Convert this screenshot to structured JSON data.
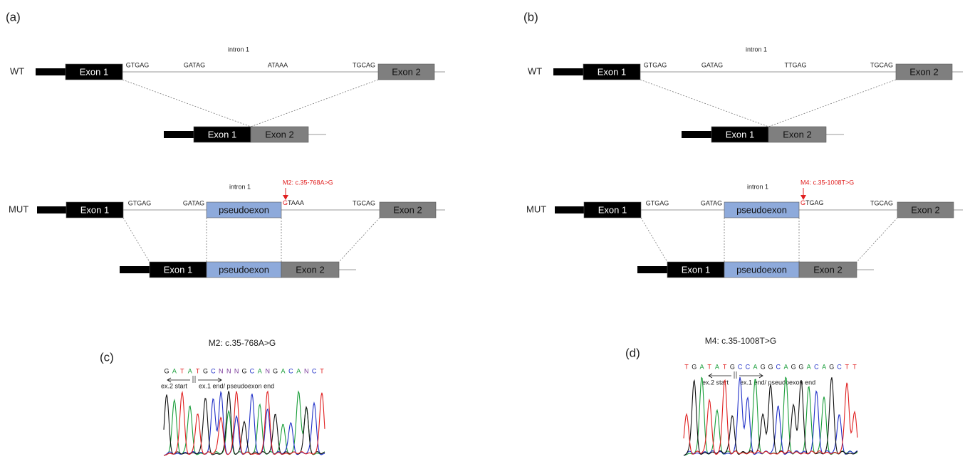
{
  "panels": [
    {
      "label": "(a)",
      "wt": {
        "label": "WT",
        "intron": "intron 1",
        "exon1": "Exon 1",
        "exon2": "Exon 2",
        "sites": [
          "GTGAG",
          "GATAG",
          "ATAAA",
          "TGCAG"
        ]
      },
      "wt_spliced": {
        "exon1": "Exon 1",
        "exon2": "Exon 2"
      },
      "mut": {
        "label": "MUT",
        "intron": "intron 1",
        "exon1": "Exon 1",
        "exon2": "Exon 2",
        "pseudoexon": "pseudoexon",
        "sites": [
          "GTGAG",
          "GATAG",
          "TGCAG"
        ],
        "mutated_base": "G",
        "after_mutation": "TAAA",
        "mutation": "M2: c.35-768A>G"
      },
      "mut_spliced": {
        "exon1": "Exon 1",
        "pseudoexon": "pseudoexon",
        "exon2": "Exon 2"
      }
    },
    {
      "label": "(b)",
      "wt": {
        "label": "WT",
        "intron": "intron 1",
        "exon1": "Exon 1",
        "exon2": "Exon 2",
        "sites": [
          "GTGAG",
          "GATAG",
          "TTGAG",
          "TGCAG"
        ]
      },
      "wt_spliced": {
        "exon1": "Exon 1",
        "exon2": "Exon 2"
      },
      "mut": {
        "label": "MUT",
        "intron": "intron 1",
        "exon1": "Exon 1",
        "exon2": "Exon 2",
        "pseudoexon": "pseudoexon",
        "sites": [
          "GTGAG",
          "GATAG",
          "TGCAG"
        ],
        "mutated_base": "G",
        "after_mutation": "TGAG",
        "mutation": "M4: c.35-1008T>G"
      },
      "mut_spliced": {
        "exon1": "Exon 1",
        "pseudoexon": "pseudoexon",
        "exon2": "Exon 2"
      }
    }
  ],
  "chromatograms": [
    {
      "label": "(c)",
      "title": "M2: c.35-768A>G",
      "sequence": [
        "G",
        "A",
        "T",
        "A",
        "T",
        "G",
        "C",
        "N",
        "N",
        "N",
        "G",
        "C",
        "A",
        "N",
        "G",
        "A",
        "C",
        "A",
        "N",
        "C",
        "T"
      ],
      "left_note": "ex.2 start",
      "right_note": "ex.1 end/ pseudoexon end"
    },
    {
      "label": "(d)",
      "title": "M4: c.35-1008T>G",
      "sequence": [
        "T",
        "G",
        "A",
        "T",
        "A",
        "T",
        "G",
        "C",
        "C",
        "A",
        "G",
        "G",
        "C",
        "A",
        "G",
        "G",
        "A",
        "C",
        "A",
        "G",
        "C",
        "T",
        "T"
      ],
      "left_note": "ex.2 start",
      "right_note": "ex.1 end/ pseudoexon end"
    }
  ]
}
